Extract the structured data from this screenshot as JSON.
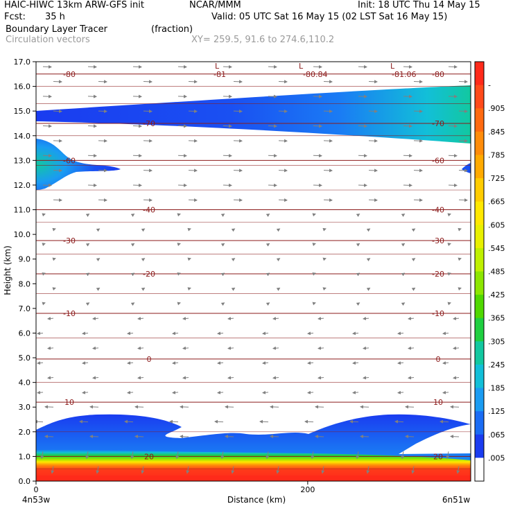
{
  "header": {
    "model": "HAIC-HIWC 13km ARW-GFS init",
    "org": "NCAR/MMM",
    "init": "Init: 18 UTC Thu 14 May 15",
    "fcst_label": "Fcst:",
    "fcst_value": "35 h",
    "valid": "Valid: 05 UTC Sat 16 May 15 (02 LST Sat 16 May 15)",
    "field_name": "Boundary Layer Tracer",
    "field_units": "(fraction)",
    "vector_label": "Circulation vectors",
    "xy_label": "XY= 259.5, 91.6 to 274.6,110.2"
  },
  "chart_data": {
    "type": "heatmap",
    "title": "Boundary Layer Tracer",
    "ylabel": "Height (km)",
    "xlabel": "Distance (km)",
    "ylim": [
      0,
      17
    ],
    "xlim": [
      0,
      320
    ],
    "y_ticks": [
      "0.0",
      "1.0",
      "2.0",
      "3.0",
      "4.0",
      "5.0",
      "6.0",
      "7.0",
      "8.0",
      "9.0",
      "10.0",
      "11.0",
      "12.0",
      "13.0",
      "14.0",
      "15.0",
      "16.0",
      "17.0"
    ],
    "x_ticks": [
      {
        "value": 0,
        "label": "0"
      },
      {
        "value": 200,
        "label": "200"
      }
    ],
    "x_end_labels": {
      "left": "4n53w",
      "right": "6n51w"
    },
    "colorbar": {
      "labels": [
        "-",
        ".905",
        ".845",
        ".785",
        ".725",
        ".665",
        ".605",
        ".545",
        ".485",
        ".425",
        ".365",
        ".305",
        ".245",
        ".185",
        ".125",
        ".065",
        ".005"
      ],
      "colors": [
        "#ff2a1a",
        "#ff4a1a",
        "#ff6a10",
        "#ff8c0a",
        "#ffaa00",
        "#ffcc00",
        "#ffe800",
        "#e8f000",
        "#bff000",
        "#8ce600",
        "#4fd800",
        "#1fcf40",
        "#12c8a0",
        "#12bfd8",
        "#1a9cf2",
        "#1a6cf4",
        "#1a3cf0",
        "#ffffff"
      ]
    },
    "isotherms": [
      {
        "label": "-80",
        "y": 16.5
      },
      {
        "label": "-70",
        "y": 14.5
      },
      {
        "label": "-60",
        "y": 13.0
      },
      {
        "label": "-40",
        "y": 11.0
      },
      {
        "label": "-30",
        "y": 9.75
      },
      {
        "label": "-20",
        "y": 8.4
      },
      {
        "label": "-10",
        "y": 6.8
      },
      {
        "label": "0",
        "y": 4.95
      },
      {
        "label": "10",
        "y": 3.2
      },
      {
        "label": "20",
        "y": 1.0
      }
    ],
    "low_labels": [
      "L",
      "L",
      "L"
    ],
    "tropopause_labels": [
      "-81",
      "-80.84",
      "-81.06"
    ]
  }
}
